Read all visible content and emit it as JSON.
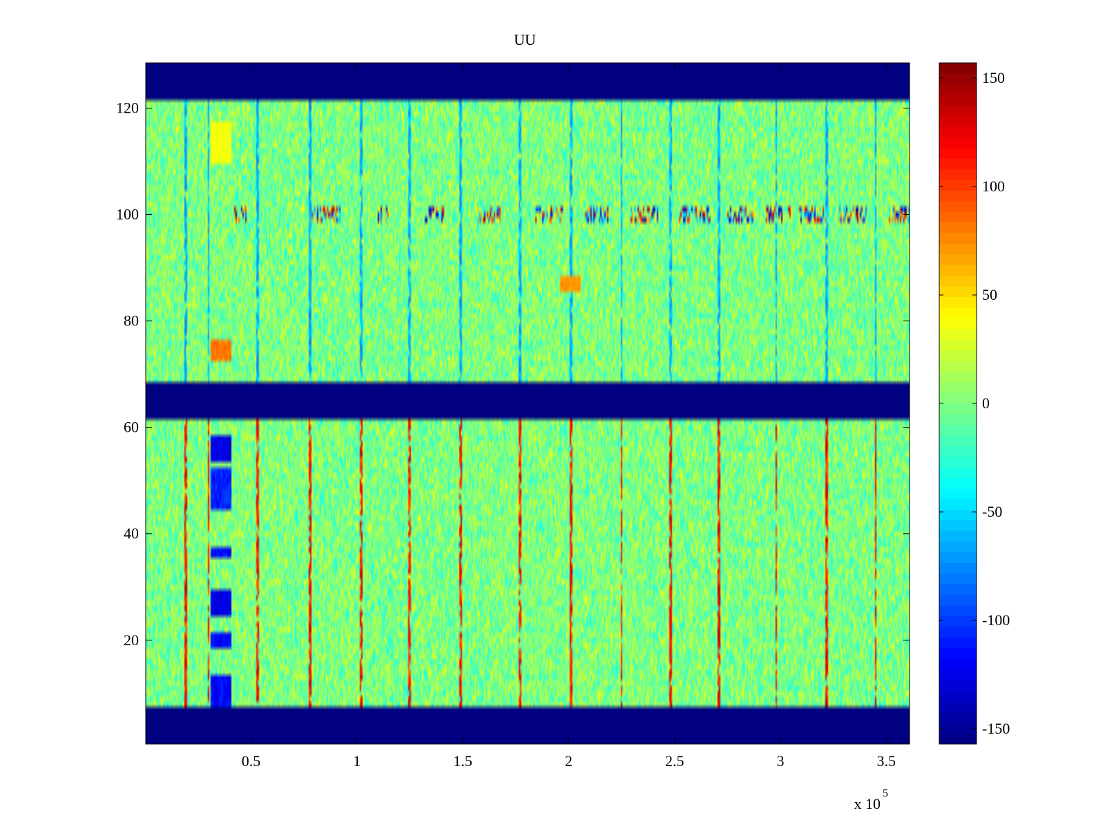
{
  "chart_data": {
    "type": "heatmap",
    "title": "UU",
    "xlabel": "",
    "ylabel": "",
    "x_multiplier": "x 10",
    "x_multiplier_exponent": "5",
    "xlim": [
      0.0025,
      3.61
    ],
    "ylim": [
      0.5,
      128.5
    ],
    "x_ticks": [
      {
        "value": 0.5,
        "label": "0.5"
      },
      {
        "value": 1.0,
        "label": "1"
      },
      {
        "value": 1.5,
        "label": "1.5"
      },
      {
        "value": 2.0,
        "label": "2"
      },
      {
        "value": 2.5,
        "label": "2.5"
      },
      {
        "value": 3.0,
        "label": "3"
      },
      {
        "value": 3.5,
        "label": "3.5"
      }
    ],
    "y_ticks": [
      {
        "value": 20,
        "label": "20"
      },
      {
        "value": 40,
        "label": "40"
      },
      {
        "value": 60,
        "label": "60"
      },
      {
        "value": 80,
        "label": "80"
      },
      {
        "value": 100,
        "label": "100"
      },
      {
        "value": 120,
        "label": "120"
      }
    ],
    "colorbar": {
      "colormap": "jet",
      "clim": [
        -157,
        157
      ],
      "ticks": [
        {
          "value": 150,
          "label": "150"
        },
        {
          "value": 100,
          "label": "100"
        },
        {
          "value": 50,
          "label": "50"
        },
        {
          "value": 0,
          "label": "0"
        },
        {
          "value": -50,
          "label": "-50"
        },
        {
          "value": -100,
          "label": "-100"
        },
        {
          "value": -150,
          "label": "-150"
        }
      ]
    },
    "masked_rows": [
      {
        "y_from": 0.5,
        "y_to": 7.5,
        "value": -157
      },
      {
        "y_from": 61.5,
        "y_to": 68.5,
        "value": -157
      },
      {
        "y_from": 121.5,
        "y_to": 128.5,
        "value": -157
      }
    ],
    "active_rows": [
      {
        "y_from": 7.5,
        "y_to": 61.5
      },
      {
        "y_from": 68.5,
        "y_to": 121.5
      }
    ],
    "background_value_range": [
      -40,
      40
    ],
    "periodic_spike_columns_x": [
      0.19,
      0.3,
      0.53,
      0.78,
      1.02,
      1.25,
      1.49,
      1.77,
      2.01,
      2.25,
      2.48,
      2.71,
      2.98,
      3.22,
      3.45
    ],
    "spike_value_lower_block": 140,
    "spike_value_upper_block": -80,
    "row_band_y": 100,
    "row_band_x_segments": [
      [
        0.42,
        0.48
      ],
      [
        0.78,
        0.92
      ],
      [
        1.09,
        1.16
      ],
      [
        1.32,
        1.42
      ],
      [
        1.57,
        1.68
      ],
      [
        1.84,
        1.97
      ],
      [
        2.08,
        2.2
      ],
      [
        2.29,
        2.42
      ],
      [
        2.52,
        2.67
      ],
      [
        2.75,
        2.88
      ],
      [
        2.93,
        3.05
      ],
      [
        3.09,
        3.21
      ],
      [
        3.28,
        3.41
      ],
      [
        3.51,
        3.61
      ]
    ],
    "row_band_value_range": [
      -150,
      150
    ],
    "hot_spots": [
      {
        "x": 0.36,
        "y_from": 73,
        "y_to": 76,
        "value": 90
      },
      {
        "x": 0.36,
        "y_from": 110,
        "y_to": 117,
        "value": 40
      },
      {
        "x": 2.01,
        "y_from": 86,
        "y_to": 88,
        "value": 80
      }
    ],
    "cold_spots": [
      {
        "x": 0.36,
        "y_from": 54,
        "y_to": 58,
        "value": -140
      },
      {
        "x": 0.36,
        "y_from": 45,
        "y_to": 52,
        "value": -120
      },
      {
        "x": 0.36,
        "y_from": 36,
        "y_to": 37,
        "value": -130
      },
      {
        "x": 0.36,
        "y_from": 25,
        "y_to": 29,
        "value": -140
      },
      {
        "x": 0.36,
        "y_from": 19,
        "y_to": 21,
        "value": -130
      },
      {
        "x": 0.36,
        "y_from": 8,
        "y_to": 13,
        "value": -130
      }
    ]
  }
}
